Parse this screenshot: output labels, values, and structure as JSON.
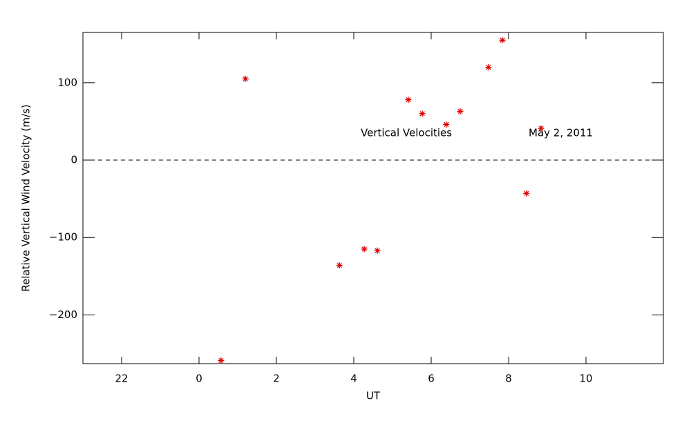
{
  "chart_data": {
    "type": "scatter",
    "xlabel": "UT",
    "ylabel": "Relative Vertical Wind Velocity (m/s)",
    "annotations": [
      "Vertical Velocities",
      "May 2, 2011"
    ],
    "xlim": [
      -3,
      12
    ],
    "xticks": [
      {
        "value": -2,
        "label": "22"
      },
      0,
      2,
      4,
      6,
      8,
      10
    ],
    "ylim": [
      -263,
      165
    ],
    "yticks": [
      {
        "value": -200,
        "label": "−200"
      },
      {
        "value": -100,
        "label": "−100"
      },
      0,
      100
    ],
    "hline": 0,
    "series": [
      {
        "color": "#e00000",
        "x": [
          0.57,
          1.2,
          3.63,
          4.27,
          4.61,
          5.41,
          5.77,
          6.39,
          6.75,
          7.48,
          7.84,
          8.46,
          8.84
        ],
        "values": [
          -259,
          105,
          -136,
          -115,
          -117,
          78,
          60,
          46,
          63,
          120,
          155,
          -43,
          41
        ]
      }
    ]
  }
}
